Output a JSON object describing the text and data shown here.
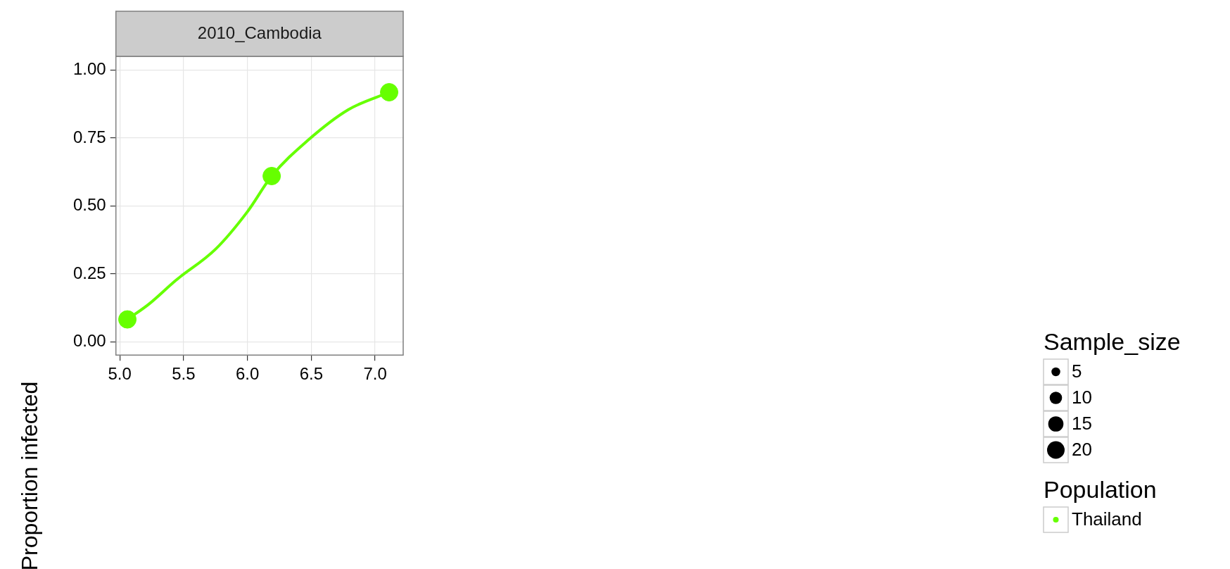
{
  "chart_data": {
    "type": "bubble",
    "title": "2010_Cambodia",
    "ylabel": "Proportion infected",
    "legend_title": [
      "Sample_size",
      "Population"
    ],
    "series": [
      {
        "name": "Thailand",
        "color": "#66ff00",
        "x": [
          5.06,
          6.19,
          7.11
        ],
        "values": [
          0.083,
          0.61,
          0.918
        ],
        "sizes": [
          20,
          20,
          20
        ]
      },
      {
        "type": "line",
        "color": "#66ff00",
        "x": [
          5.06,
          5.23,
          5.44,
          5.75,
          6.0,
          6.19,
          6.47,
          6.79,
          7.11
        ],
        "values": [
          0.083,
          0.14,
          0.227,
          0.341,
          0.479,
          0.61,
          0.74,
          0.854,
          0.918
        ]
      }
    ],
    "size_legend": [
      5,
      10,
      15,
      20
    ],
    "xlim": [
      4.97,
      7.22
    ],
    "ylim": [
      -0.048,
      1.05
    ],
    "xticks": [
      {
        "value": 5,
        "label": "5.0"
      },
      5.5,
      {
        "value": 6,
        "label": "6.0"
      },
      6.5,
      {
        "value": 7,
        "label": "7.0"
      }
    ],
    "yticks": [
      {
        "value": 0,
        "label": "0.00"
      },
      0.25,
      {
        "value": 0.5,
        "label": "0.50"
      },
      0.75,
      {
        "value": 1,
        "label": "1.00"
      }
    ],
    "grid": true,
    "legend": "right"
  }
}
